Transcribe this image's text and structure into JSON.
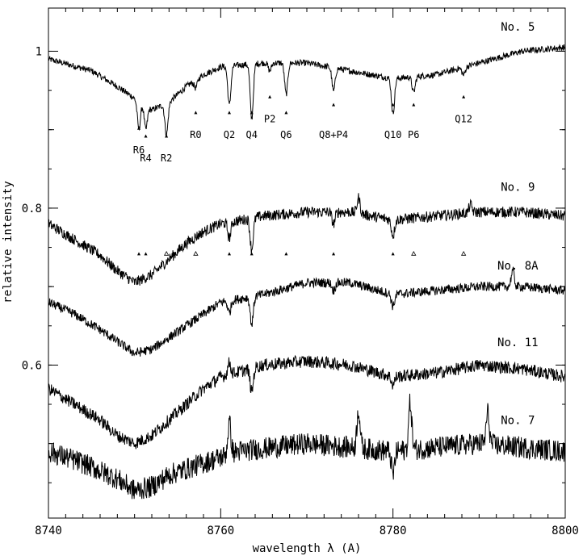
{
  "chart_data": {
    "type": "line",
    "title": "",
    "xlabel": "wavelength λ (A)",
    "ylabel": "relative intensity",
    "xlim": [
      8740,
      8800
    ],
    "ylim": [
      0.405,
      1.055
    ],
    "x_ticks": [
      8740,
      8760,
      8780,
      8800
    ],
    "y_ticks_labeled": [
      0.6,
      0.8,
      1
    ],
    "y_minor_ticks": [
      0.5,
      0.7,
      0.9
    ],
    "grid": false,
    "legend": "none",
    "series": [
      {
        "name": "No. 5",
        "style": "smooth",
        "continuum": [
          [
            8740,
            0.99
          ],
          [
            8745,
            0.975
          ],
          [
            8748,
            0.955
          ],
          [
            8750,
            0.94
          ],
          [
            8752,
            0.925
          ],
          [
            8754,
            0.935
          ],
          [
            8756,
            0.955
          ],
          [
            8758,
            0.97
          ],
          [
            8760,
            0.98
          ],
          [
            8765,
            0.985
          ],
          [
            8770,
            0.985
          ],
          [
            8775,
            0.975
          ],
          [
            8780,
            0.965
          ],
          [
            8785,
            0.97
          ],
          [
            8790,
            0.985
          ],
          [
            8795,
            1.0
          ],
          [
            8800,
            1.005
          ]
        ],
        "lines": [
          [
            8750.5,
            0.035
          ],
          [
            8751.3,
            0.03
          ],
          [
            8753.7,
            0.04
          ],
          [
            8757.1,
            0.01
          ],
          [
            8761.0,
            0.05
          ],
          [
            8763.6,
            0.07
          ],
          [
            8765.7,
            0.01
          ],
          [
            8767.6,
            0.04
          ],
          [
            8773.1,
            0.03
          ],
          [
            8780.0,
            0.045
          ],
          [
            8782.4,
            0.02
          ],
          [
            8788.2,
            0.01
          ]
        ],
        "noise": 0.004
      },
      {
        "name": "No. 9",
        "style": "noisy",
        "continuum": [
          [
            8740,
            0.78
          ],
          [
            8743,
            0.76
          ],
          [
            8746,
            0.74
          ],
          [
            8748,
            0.72
          ],
          [
            8750,
            0.705
          ],
          [
            8752,
            0.715
          ],
          [
            8754,
            0.735
          ],
          [
            8756,
            0.755
          ],
          [
            8758,
            0.77
          ],
          [
            8760,
            0.78
          ],
          [
            8765,
            0.79
          ],
          [
            8770,
            0.795
          ],
          [
            8775,
            0.795
          ],
          [
            8780,
            0.785
          ],
          [
            8785,
            0.79
          ],
          [
            8790,
            0.795
          ],
          [
            8795,
            0.795
          ],
          [
            8800,
            0.79
          ]
        ],
        "lines": [
          [
            8761.0,
            0.02
          ],
          [
            8763.6,
            0.04
          ],
          [
            8773.1,
            0.015
          ],
          [
            8780.0,
            0.02
          ],
          [
            8776.0,
            -0.02
          ],
          [
            8789.0,
            -0.01
          ]
        ],
        "noise": 0.007
      },
      {
        "name": "No. 8A",
        "style": "noisy",
        "continuum": [
          [
            8740,
            0.68
          ],
          [
            8743,
            0.665
          ],
          [
            8746,
            0.645
          ],
          [
            8748,
            0.63
          ],
          [
            8750,
            0.615
          ],
          [
            8752,
            0.62
          ],
          [
            8754,
            0.635
          ],
          [
            8756,
            0.65
          ],
          [
            8758,
            0.665
          ],
          [
            8760,
            0.68
          ],
          [
            8765,
            0.69
          ],
          [
            8770,
            0.705
          ],
          [
            8775,
            0.705
          ],
          [
            8780,
            0.69
          ],
          [
            8785,
            0.695
          ],
          [
            8790,
            0.7
          ],
          [
            8795,
            0.7
          ],
          [
            8800,
            0.695
          ]
        ],
        "lines": [
          [
            8761.0,
            0.015
          ],
          [
            8763.6,
            0.035
          ],
          [
            8773.1,
            0.01
          ],
          [
            8780.0,
            0.015
          ],
          [
            8793.9,
            -0.02
          ]
        ],
        "noise": 0.006
      },
      {
        "name": "No. 11",
        "style": "noisy",
        "continuum": [
          [
            8740,
            0.57
          ],
          [
            8743,
            0.55
          ],
          [
            8746,
            0.53
          ],
          [
            8748,
            0.51
          ],
          [
            8750,
            0.5
          ],
          [
            8752,
            0.51
          ],
          [
            8754,
            0.53
          ],
          [
            8756,
            0.55
          ],
          [
            8758,
            0.57
          ],
          [
            8760,
            0.585
          ],
          [
            8765,
            0.6
          ],
          [
            8770,
            0.605
          ],
          [
            8775,
            0.6
          ],
          [
            8780,
            0.585
          ],
          [
            8785,
            0.59
          ],
          [
            8790,
            0.6
          ],
          [
            8795,
            0.595
          ],
          [
            8800,
            0.585
          ]
        ],
        "lines": [
          [
            8763.6,
            0.03
          ],
          [
            8761.0,
            -0.015
          ],
          [
            8780.0,
            0.01
          ]
        ],
        "noise": 0.008
      },
      {
        "name": "No. 7",
        "style": "noisy",
        "continuum": [
          [
            8740,
            0.49
          ],
          [
            8744,
            0.475
          ],
          [
            8748,
            0.455
          ],
          [
            8750,
            0.44
          ],
          [
            8752,
            0.445
          ],
          [
            8754,
            0.46
          ],
          [
            8758,
            0.475
          ],
          [
            8762,
            0.49
          ],
          [
            8770,
            0.5
          ],
          [
            8780,
            0.49
          ],
          [
            8790,
            0.5
          ],
          [
            8800,
            0.49
          ]
        ],
        "lines": [
          [
            8761.0,
            -0.04
          ],
          [
            8776.0,
            -0.05
          ],
          [
            8780.0,
            0.03
          ],
          [
            8791.0,
            -0.04
          ],
          [
            8782.0,
            -0.06
          ]
        ],
        "noise": 0.014
      }
    ],
    "star_labels": [
      {
        "text": "No. 5",
        "x": 8794.5,
        "y": 1.026
      },
      {
        "text": "No. 9",
        "x": 8794.5,
        "y": 0.822
      },
      {
        "text": "No. 8A",
        "x": 8794.5,
        "y": 0.722
      },
      {
        "text": "No. 11",
        "x": 8794.5,
        "y": 0.624
      },
      {
        "text": "No. 7",
        "x": 8794.5,
        "y": 0.525
      }
    ],
    "line_ids_top": [
      {
        "text": "R6",
        "x": 8750.5,
        "marker_y": 0.902,
        "label_y": 0.882
      },
      {
        "text": "R4",
        "x": 8751.3,
        "marker_y": 0.892,
        "label_y": 0.872
      },
      {
        "text": "R2",
        "x": 8753.7,
        "marker_y": 0.892,
        "label_y": 0.872
      },
      {
        "text": "R0",
        "x": 8757.1,
        "marker_y": 0.922,
        "label_y": 0.902
      },
      {
        "text": "Q2",
        "x": 8761.0,
        "marker_y": 0.922,
        "label_y": 0.902
      },
      {
        "text": "Q4",
        "x": 8763.6,
        "marker_y": 0.922,
        "label_y": 0.902
      },
      {
        "text": "P2",
        "x": 8765.7,
        "marker_y": 0.942,
        "label_y": 0.922
      },
      {
        "text": "Q6",
        "x": 8767.6,
        "marker_y": 0.922,
        "label_y": 0.902
      },
      {
        "text": "Q8+P4",
        "x": 8773.1,
        "marker_y": 0.932,
        "label_y": 0.902
      },
      {
        "text": "Q10",
        "x": 8780.0,
        "marker_y": 0.932,
        "label_y": 0.902
      },
      {
        "text": "P6",
        "x": 8782.4,
        "marker_y": 0.932,
        "label_y": 0.902
      },
      {
        "text": "Q12",
        "x": 8788.2,
        "marker_y": 0.942,
        "label_y": 0.922
      }
    ],
    "line_ids_mid_markers": [
      {
        "x": 8750.5,
        "y": 0.742,
        "shape": "filled"
      },
      {
        "x": 8751.3,
        "y": 0.742,
        "shape": "filled"
      },
      {
        "x": 8753.7,
        "y": 0.742,
        "shape": "open"
      },
      {
        "x": 8757.1,
        "y": 0.742,
        "shape": "open"
      },
      {
        "x": 8761.0,
        "y": 0.742,
        "shape": "filled"
      },
      {
        "x": 8763.6,
        "y": 0.742,
        "shape": "filled"
      },
      {
        "x": 8767.6,
        "y": 0.742,
        "shape": "filled"
      },
      {
        "x": 8773.1,
        "y": 0.742,
        "shape": "filled"
      },
      {
        "x": 8780.0,
        "y": 0.742,
        "shape": "filled"
      },
      {
        "x": 8782.4,
        "y": 0.742,
        "shape": "open"
      },
      {
        "x": 8788.2,
        "y": 0.742,
        "shape": "open"
      }
    ]
  }
}
